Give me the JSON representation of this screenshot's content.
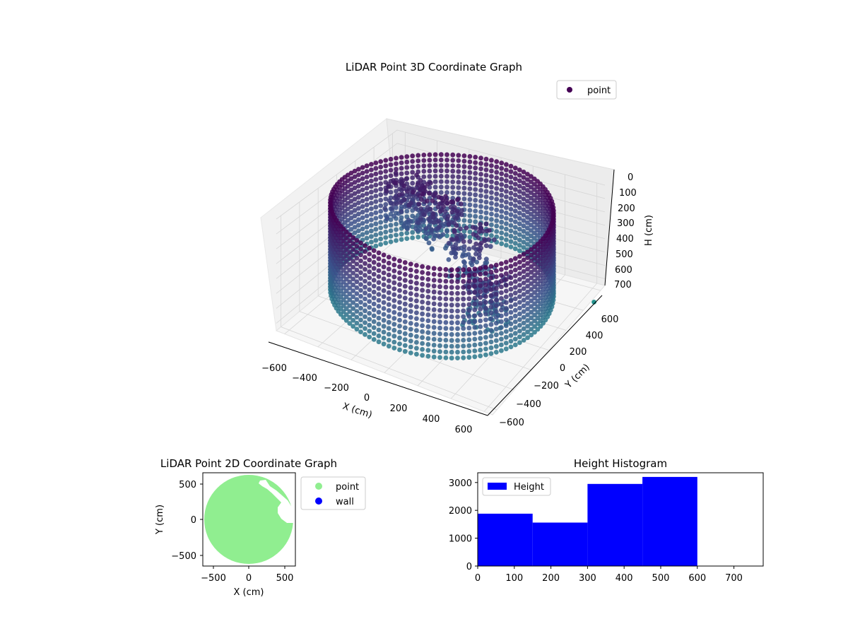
{
  "colors": {
    "viridis_top": "#440154",
    "viridis_mid": "#3b528b",
    "viridis_low": "#21918c",
    "viridis_high": "#fde725",
    "floor_point": "#90ee90",
    "wall": "#0000ff",
    "hist_bar": "#0000ff"
  },
  "chart_data": [
    {
      "type": "scatter",
      "projection": "3d",
      "title": "LiDAR Point 3D Coordinate Graph",
      "xlabel": "X (cm)",
      "ylabel": "Y (cm)",
      "zlabel": "H (cm)",
      "xlim": [
        -650,
        650
      ],
      "ylim": [
        -650,
        650
      ],
      "zlim": [
        0,
        750
      ],
      "z_inverted": true,
      "x_ticks": [
        "−600",
        "−400",
        "−200",
        "0",
        "200",
        "400",
        "600"
      ],
      "y_ticks": [
        "−600",
        "−400",
        "−200",
        "0",
        "200",
        "400",
        "600"
      ],
      "z_ticks": [
        "0",
        "100",
        "200",
        "300",
        "400",
        "500",
        "600",
        "700"
      ],
      "legend": [
        {
          "label": "point",
          "color": "#440154"
        }
      ],
      "legend_position": "upper-right",
      "grid": true,
      "wall": {
        "shape": "circle",
        "radius_cm": 600,
        "height_cm": [
          0,
          600
        ]
      },
      "inner_clusters": [
        {
          "x": -150,
          "y": 250,
          "h_top": 80,
          "h_bottom": 450
        },
        {
          "x": 120,
          "y": 100,
          "h_top": 150,
          "h_bottom": 520
        },
        {
          "x": -380,
          "y": 300,
          "h_top": 100,
          "h_bottom": 420
        },
        {
          "x": 350,
          "y": -150,
          "h_top": 250,
          "h_bottom": 580
        }
      ]
    },
    {
      "type": "scatter",
      "title": "LiDAR Point 2D Coordinate Graph",
      "xlabel": "X (cm)",
      "ylabel": "Y (cm)",
      "xlim": [
        -650,
        650
      ],
      "ylim": [
        -650,
        650
      ],
      "x_ticks": [
        "−500",
        "0",
        "500"
      ],
      "y_ticks": [
        "−500",
        "0",
        "500"
      ],
      "series": [
        {
          "name": "point",
          "color": "#90ee90",
          "shape": "disk",
          "radius_cm": 620
        },
        {
          "name": "wall",
          "color": "#0000ff"
        }
      ],
      "legend_position": "outside-right"
    },
    {
      "type": "bar",
      "title": "Height Histogram",
      "bin_edges": [
        0,
        150,
        300,
        450,
        600
      ],
      "values": [
        1880,
        1560,
        2950,
        3200
      ],
      "xlim": [
        0,
        780
      ],
      "ylim": [
        0,
        3350
      ],
      "x_ticks": [
        "0",
        "100",
        "200",
        "300",
        "400",
        "500",
        "600",
        "700"
      ],
      "y_ticks": [
        "0",
        "1000",
        "2000",
        "3000"
      ],
      "legend": [
        {
          "label": "Height",
          "color": "#0000ff"
        }
      ],
      "legend_position": "upper-left"
    }
  ]
}
